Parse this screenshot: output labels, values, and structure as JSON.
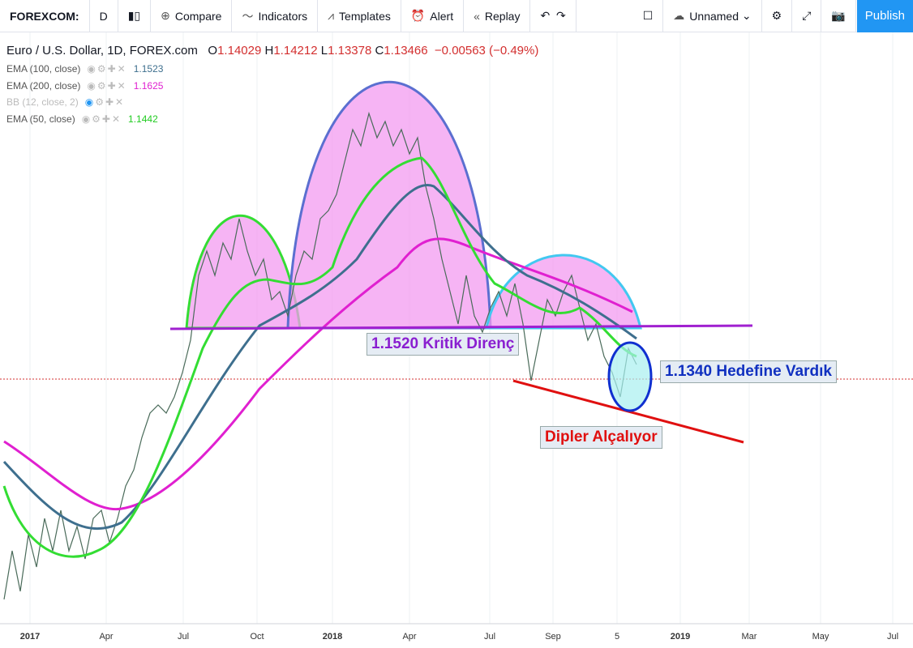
{
  "toolbar": {
    "symbol": "FOREXCOM:",
    "interval": "D",
    "compare": "Compare",
    "indicators": "Indicators",
    "templates": "Templates",
    "alert": "Alert",
    "replay": "Replay",
    "layout": "Unnamed",
    "publish": "Publish"
  },
  "legend": {
    "title": "Euro / U.S. Dollar, 1D, FOREX.com",
    "open_label": "O",
    "open": "1.14029",
    "high_label": "H",
    "high": "1.14212",
    "low_label": "L",
    "low": "1.13378",
    "close_label": "C",
    "close": "1.13466",
    "change": "−0.00563 (−0.49%)"
  },
  "studies": [
    {
      "name": "EMA (100, close)",
      "value": "1.1523"
    },
    {
      "name": "EMA (200, close)",
      "value": "1.1625"
    },
    {
      "name": "BB (12, close, 2)"
    },
    {
      "name": "EMA (50, close)",
      "value": "1.1442"
    }
  ],
  "annotations": [
    "1.1520 Kritik Direnç",
    "1.1340 Hedefine Vardık",
    "Dipler Alçalıyor"
  ],
  "time_axis": [
    "2017",
    "Apr",
    "Jul",
    "Oct",
    "2018",
    "Apr",
    "Jul",
    "Sep",
    "5",
    "2019",
    "Mar",
    "May",
    "Jul"
  ]
}
